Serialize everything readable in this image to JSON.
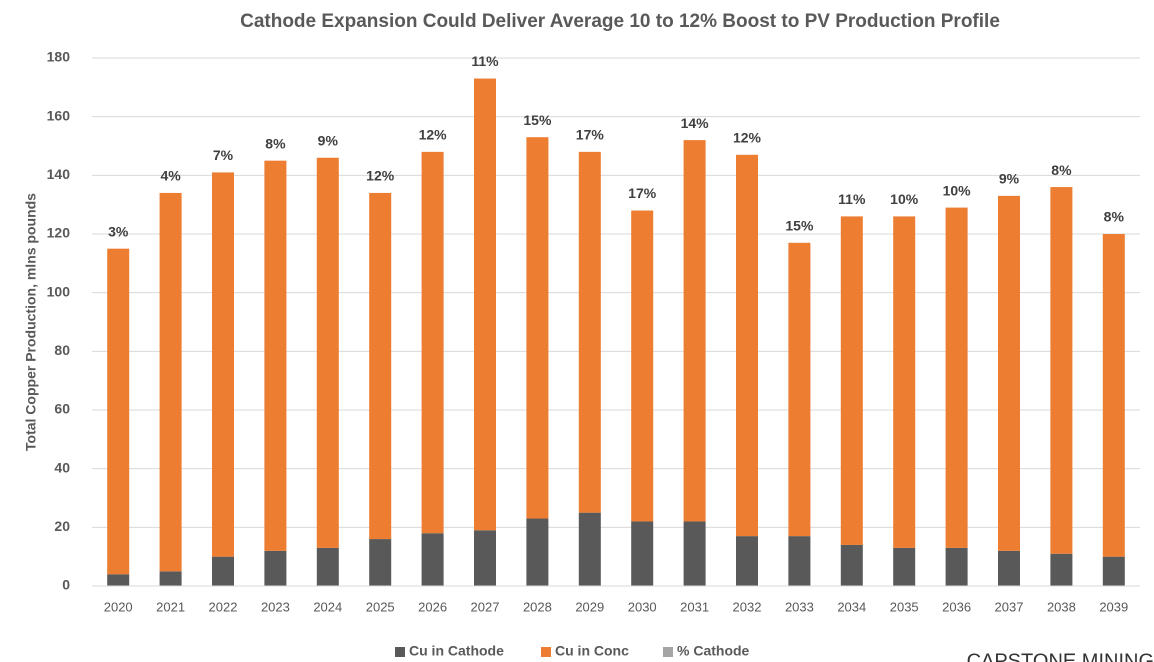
{
  "chart_data": {
    "type": "bar",
    "stacked": true,
    "title": "Cathode Expansion Could Deliver Average 10 to 12% Boost to PV Production Profile",
    "y_label": "Total Copper Production, mlns pounds",
    "annotation": "CAPSTONE MINING",
    "categories": [
      "2020",
      "2021",
      "2022",
      "2023",
      "2024",
      "2025",
      "2026",
      "2027",
      "2028",
      "2029",
      "2030",
      "2031",
      "2032",
      "2033",
      "2034",
      "2035",
      "2036",
      "2037",
      "2038",
      "2039"
    ],
    "series": [
      {
        "name": "Cu in Cathode",
        "color": "#595959",
        "values": [
          4,
          5,
          10,
          12,
          13,
          16,
          18,
          19,
          23,
          25,
          22,
          22,
          17,
          17,
          14,
          13,
          13,
          12,
          11,
          10
        ]
      },
      {
        "name": "Cu in Conc",
        "color": "#ed7d31",
        "values": [
          111,
          129,
          131,
          133,
          133,
          118,
          130,
          154,
          130,
          123,
          106,
          130,
          130,
          100,
          112,
          113,
          116,
          121,
          125,
          110
        ]
      },
      {
        "name": "% Cathode",
        "color": "#a5a5a5",
        "label_only": true,
        "values": [
          3,
          4,
          7,
          8,
          9,
          12,
          12,
          11,
          15,
          17,
          17,
          14,
          12,
          15,
          11,
          10,
          10,
          9,
          8,
          8
        ],
        "value_labels": [
          "3%",
          "4%",
          "7%",
          "8%",
          "9%",
          "12%",
          "12%",
          "11%",
          "15%",
          "17%",
          "17%",
          "14%",
          "12%",
          "15%",
          "11%",
          "10%",
          "10%",
          "9%",
          "8%",
          "8%"
        ]
      }
    ],
    "ylim": [
      0,
      180
    ],
    "yticks": [
      0,
      20,
      40,
      60,
      80,
      100,
      120,
      140,
      160,
      180
    ],
    "grid": true,
    "legend": "bottom"
  }
}
